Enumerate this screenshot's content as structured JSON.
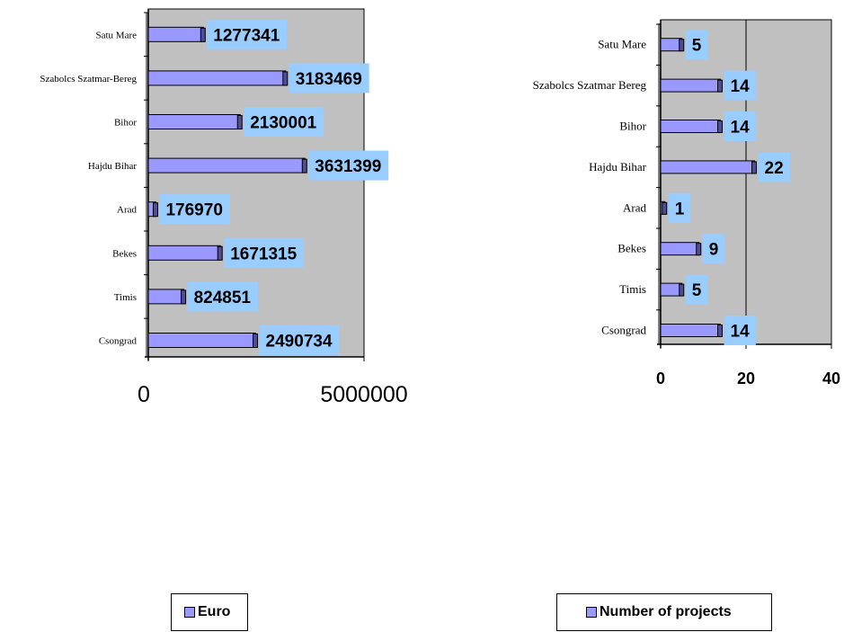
{
  "chart_data": [
    {
      "type": "bar",
      "orientation": "horizontal",
      "categories": [
        "Satu Mare",
        "Szabolcs Szatmar-Bereg",
        "Bihor",
        "Hajdu Bihar",
        "Arad",
        "Bekes",
        "Timis",
        "Csongrad"
      ],
      "series": [
        {
          "name": "Euro",
          "values": [
            1277341,
            3183469,
            2130001,
            3631399,
            176970,
            1671315,
            824851,
            2490734
          ]
        }
      ],
      "xlim": [
        0,
        5000000
      ],
      "xticks": [
        "0",
        "5000000"
      ],
      "title": "",
      "xlabel": "",
      "ylabel": "",
      "grid": false,
      "legend": "bottom",
      "colors": {
        "bar": "#9999ff",
        "plot_bg": "#c0c0c0",
        "label_bg": "#99ccff"
      }
    },
    {
      "type": "bar",
      "orientation": "horizontal",
      "categories": [
        "Satu Mare",
        "Szabolcs Szatmar Bereg",
        "Bihor",
        "Hajdu Bihar",
        "Arad",
        "Bekes",
        "Timis",
        "Csongrad"
      ],
      "series": [
        {
          "name": "Number of projects",
          "values": [
            5,
            14,
            14,
            22,
            1,
            9,
            5,
            14
          ]
        }
      ],
      "xlim": [
        0,
        40
      ],
      "xticks": [
        "0",
        "20",
        "40"
      ],
      "title": "",
      "xlabel": "",
      "ylabel": "",
      "grid": true,
      "legend": "bottom",
      "colors": {
        "bar": "#9999ff",
        "plot_bg": "#c0c0c0",
        "label_bg": "#99ccff"
      }
    }
  ]
}
